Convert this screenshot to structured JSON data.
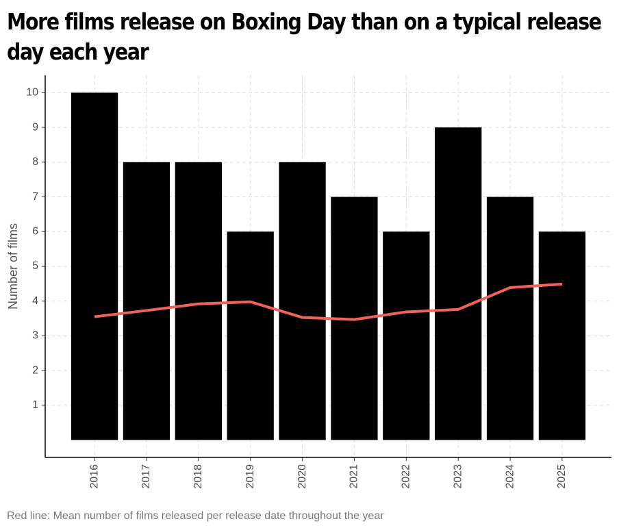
{
  "chart_data": {
    "type": "bar",
    "title": "More films release on Boxing Day than on a typical release day each year",
    "y_label": "Number of films",
    "caption": "Red line: Mean number of films released per release date throughout the year",
    "categories": [
      "2016",
      "2017",
      "2018",
      "2019",
      "2020",
      "2021",
      "2022",
      "2023",
      "2024",
      "2025"
    ],
    "series": [
      {
        "type": "bar",
        "color": "#000000",
        "values": [
          10,
          8,
          8,
          6,
          8,
          7,
          6,
          9,
          7,
          6
        ]
      },
      {
        "type": "line",
        "color": "#f0635a",
        "values": [
          3.55,
          3.73,
          3.92,
          3.98,
          3.53,
          3.47,
          3.69,
          3.76,
          4.39,
          4.49
        ]
      }
    ],
    "ylim": [
      -0.5,
      10.5
    ],
    "yticks": [
      1,
      2,
      3,
      4,
      5,
      6,
      7,
      8,
      9,
      10
    ],
    "grid": true
  }
}
